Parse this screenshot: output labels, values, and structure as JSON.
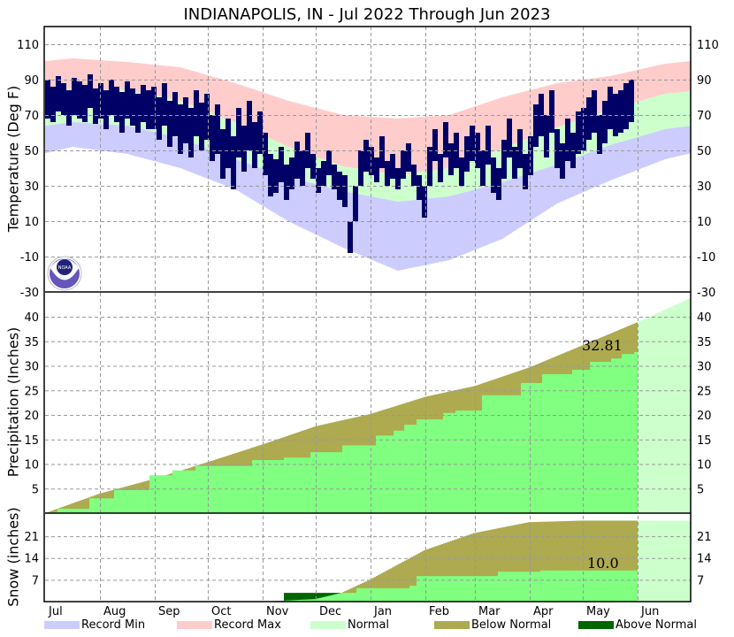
{
  "title": "INDIANAPOLIS, IN - Jul 2022 Through Jun 2023",
  "legend": [
    {
      "label": "Record Min",
      "color": "#ccccff"
    },
    {
      "label": "Record Max",
      "color": "#ffcccc"
    },
    {
      "label": "Normal",
      "color": "#ccffcc"
    },
    {
      "label": "Below Normal",
      "color": "#adaa50"
    },
    {
      "label": "Above Normal",
      "color": "#006600"
    }
  ],
  "logo_text": "NOAA",
  "chart_data": {
    "type": "area",
    "months": [
      "Jul",
      "Aug",
      "Sep",
      "Oct",
      "Nov",
      "Dec",
      "Jan",
      "Feb",
      "Mar",
      "Apr",
      "May",
      "Jun"
    ],
    "month_start_days": [
      0,
      31,
      62,
      92,
      123,
      153,
      184,
      215,
      243,
      274,
      304,
      335
    ],
    "days_in_period": 365,
    "colors": {
      "observed_temp": "#000066",
      "observed_precip": "#80ff80",
      "record_max": "#ffcccc",
      "record_min": "#ccccff",
      "normal": "#ccffcc",
      "below_normal": "#adaa50",
      "above_normal": "#006600"
    },
    "temperature": {
      "ylabel": "Temperature (Deg F)",
      "ylim": [
        -30,
        110
      ],
      "ticks": [
        110,
        90,
        70,
        50,
        30,
        10,
        -10,
        -30
      ],
      "monthly_mid_days": [
        15,
        46,
        76,
        107,
        137,
        168,
        199,
        228,
        258,
        289,
        319,
        350
      ],
      "normal_high": [
        85,
        84,
        78,
        66,
        52,
        41,
        36,
        40,
        51,
        63,
        73,
        82
      ],
      "normal_low": [
        66,
        64,
        57,
        45,
        35,
        27,
        21,
        24,
        32,
        42,
        53,
        62
      ],
      "record_max": [
        102,
        100,
        97,
        88,
        78,
        70,
        68,
        70,
        80,
        88,
        92,
        99
      ],
      "record_min": [
        52,
        48,
        40,
        28,
        10,
        -5,
        -18,
        -12,
        0,
        20,
        33,
        45
      ],
      "observed_step_days": 3,
      "observed_high": [
        90,
        86,
        92,
        88,
        84,
        91,
        89,
        87,
        93,
        85,
        88,
        84,
        90,
        86,
        83,
        89,
        85,
        82,
        87,
        84,
        86,
        80,
        88,
        78,
        83,
        76,
        80,
        74,
        84,
        77,
        82,
        70,
        76,
        62,
        68,
        58,
        74,
        64,
        78,
        66,
        72,
        60,
        48,
        45,
        52,
        42,
        46,
        55,
        50,
        60,
        48,
        40,
        44,
        50,
        42,
        38,
        36,
        10,
        30,
        50,
        56,
        52,
        46,
        58,
        44,
        48,
        40,
        50,
        54,
        42,
        36,
        30,
        52,
        62,
        48,
        66,
        54,
        60,
        46,
        58,
        64,
        60,
        50,
        64,
        46,
        40,
        56,
        68,
        52,
        62,
        48,
        58,
        76,
        82,
        70,
        84,
        62,
        54,
        68,
        60,
        72,
        74,
        80,
        84,
        70,
        78,
        86,
        82,
        84,
        88,
        90
      ],
      "observed_low": [
        68,
        66,
        72,
        70,
        64,
        70,
        68,
        66,
        74,
        65,
        68,
        62,
        70,
        66,
        60,
        68,
        64,
        60,
        66,
        62,
        62,
        56,
        64,
        52,
        58,
        48,
        54,
        46,
        58,
        50,
        56,
        44,
        48,
        34,
        40,
        28,
        46,
        38,
        50,
        40,
        48,
        36,
        24,
        26,
        32,
        22,
        28,
        34,
        30,
        40,
        34,
        26,
        30,
        36,
        28,
        22,
        18,
        -8,
        10,
        30,
        38,
        36,
        32,
        40,
        30,
        34,
        28,
        34,
        38,
        30,
        22,
        12,
        30,
        44,
        32,
        46,
        36,
        40,
        30,
        38,
        44,
        40,
        30,
        42,
        26,
        22,
        34,
        46,
        34,
        40,
        28,
        36,
        52,
        58,
        46,
        60,
        40,
        34,
        44,
        40,
        48,
        50,
        56,
        60,
        48,
        54,
        62,
        58,
        60,
        62,
        66
      ]
    },
    "precipitation": {
      "ylabel": "Precipitation (Inches)",
      "ylim": [
        0,
        45
      ],
      "ticks": [
        40,
        35,
        30,
        25,
        20,
        15,
        10,
        5
      ],
      "normal_cumulative": [
        [
          0,
          0
        ],
        [
          31,
          4.0
        ],
        [
          62,
          7.0
        ],
        [
          92,
          10.4
        ],
        [
          123,
          14.0
        ],
        [
          153,
          17.7
        ],
        [
          184,
          20.2
        ],
        [
          215,
          23.7
        ],
        [
          243,
          25.9
        ],
        [
          274,
          29.7
        ],
        [
          304,
          34.2
        ],
        [
          335,
          38.9
        ],
        [
          365,
          43.8
        ]
      ],
      "observed_cumulative_steps": [
        [
          0,
          0.2
        ],
        [
          7,
          0.9
        ],
        [
          25,
          3.0
        ],
        [
          39,
          4.7
        ],
        [
          59,
          7.7
        ],
        [
          72,
          8.7
        ],
        [
          85,
          9.6
        ],
        [
          117,
          10.8
        ],
        [
          135,
          11.3
        ],
        [
          150,
          12.4
        ],
        [
          168,
          13.8
        ],
        [
          187,
          15.8
        ],
        [
          197,
          16.8
        ],
        [
          203,
          18.0
        ],
        [
          210,
          19.1
        ],
        [
          225,
          20.4
        ],
        [
          232,
          20.9
        ],
        [
          247,
          24.0
        ],
        [
          269,
          26.5
        ],
        [
          281,
          28.3
        ],
        [
          298,
          29.2
        ],
        [
          308,
          30.8
        ],
        [
          320,
          31.5
        ],
        [
          326,
          32.4
        ],
        [
          333,
          32.81
        ]
      ],
      "observed_end_day": 335,
      "total_label": "32.81"
    },
    "snow": {
      "ylabel": "Snow (inches)",
      "ylim": [
        0,
        28
      ],
      "ticks": [
        21,
        14,
        7
      ],
      "normal_cumulative": [
        [
          0,
          0
        ],
        [
          122,
          0
        ],
        [
          152,
          0.8
        ],
        [
          167,
          2.8
        ],
        [
          183,
          7.0
        ],
        [
          214,
          16.5
        ],
        [
          242,
          22.0
        ],
        [
          273,
          25.5
        ],
        [
          303,
          26.0
        ],
        [
          365,
          26.0
        ]
      ],
      "observed_cumulative_steps": [
        [
          0,
          0
        ],
        [
          135,
          2.8
        ],
        [
          176,
          4.3
        ],
        [
          206,
          5.1
        ],
        [
          210,
          8.2
        ],
        [
          256,
          9.6
        ],
        [
          280,
          10.0
        ]
      ],
      "observed_end_day": 335,
      "total_label": "10.0"
    }
  }
}
